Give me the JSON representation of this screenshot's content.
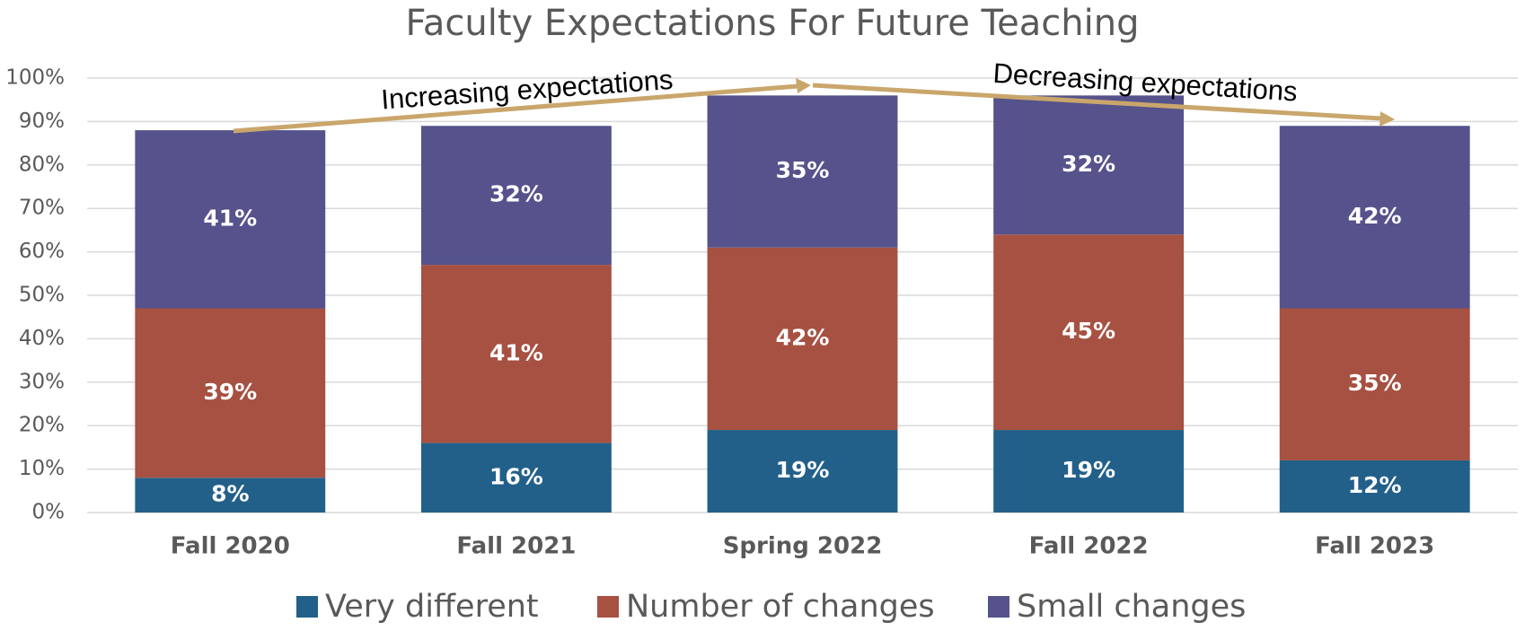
{
  "chart_data": {
    "type": "stacked_bar",
    "title": "Faculty Expectations For Future Teaching",
    "categories": [
      "Fall 2020",
      "Fall 2021",
      "Spring 2022",
      "Fall 2022",
      "Fall 2023"
    ],
    "series": [
      {
        "name": "Very different",
        "color": "#22608a",
        "values": [
          8,
          16,
          19,
          19,
          12
        ],
        "value_labels": [
          "8%",
          "16%",
          "19%",
          "19%",
          "12%"
        ]
      },
      {
        "name": "Number of changes",
        "color": "#a65142",
        "values": [
          39,
          41,
          42,
          45,
          35
        ],
        "value_labels": [
          "39%",
          "41%",
          "42%",
          "45%",
          "35%"
        ]
      },
      {
        "name": "Small changes",
        "color": "#56528c",
        "values": [
          41,
          32,
          35,
          32,
          42
        ],
        "value_labels": [
          "41%",
          "32%",
          "35%",
          "32%",
          "42%"
        ]
      }
    ],
    "ylim": [
      0,
      100
    ],
    "yticks": [
      {
        "value": 0,
        "label": "0%"
      },
      {
        "value": 10,
        "label": "10%"
      },
      {
        "value": 20,
        "label": "20%"
      },
      {
        "value": 30,
        "label": "30%"
      },
      {
        "value": 40,
        "label": "40%"
      },
      {
        "value": 50,
        "label": "50%"
      },
      {
        "value": 60,
        "label": "60%"
      },
      {
        "value": 70,
        "label": "70%"
      },
      {
        "value": 80,
        "label": "80%"
      },
      {
        "value": 90,
        "label": "90%"
      },
      {
        "value": 100,
        "label": "100%"
      }
    ],
    "grid": true,
    "legend": "bottom",
    "annotations": [
      "Increasing expectations",
      "Decreasing expectations"
    ]
  }
}
